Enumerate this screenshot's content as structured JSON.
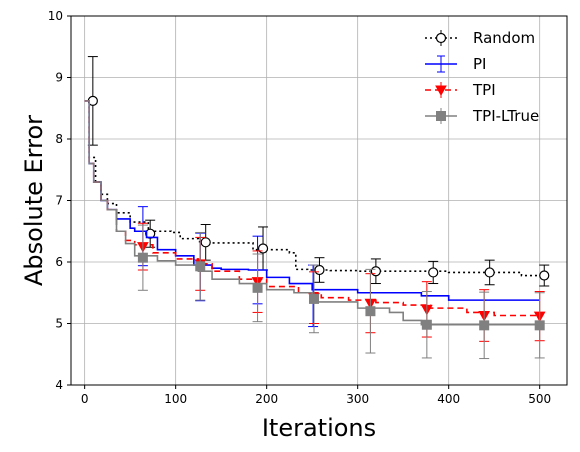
{
  "chart_data": {
    "type": "line",
    "title": "",
    "xlabel": "Iterations",
    "ylabel": "Absolute Error",
    "xlim": [
      -15,
      530
    ],
    "ylim": [
      4,
      10
    ],
    "xticks": [
      0,
      100,
      200,
      300,
      400,
      500
    ],
    "yticks": [
      4,
      5,
      6,
      7,
      8,
      9,
      10
    ],
    "grid": true,
    "legend_position": "top-right",
    "series": [
      {
        "name": "Random",
        "color": "#000000",
        "dash": "2,3",
        "marker": "circle-open",
        "step": [
          [
            0,
            8.62
          ],
          [
            5,
            7.7
          ],
          [
            12,
            7.3
          ],
          [
            18,
            7.1
          ],
          [
            25,
            6.95
          ],
          [
            35,
            6.8
          ],
          [
            50,
            6.65
          ],
          [
            70,
            6.5
          ],
          [
            95,
            6.48
          ],
          [
            105,
            6.38
          ],
          [
            125,
            6.33
          ],
          [
            135,
            6.31
          ],
          [
            185,
            6.2
          ],
          [
            225,
            6.15
          ],
          [
            232,
            5.88
          ],
          [
            245,
            5.87
          ],
          [
            270,
            5.86
          ],
          [
            300,
            5.85
          ],
          [
            400,
            5.83
          ],
          [
            470,
            5.83
          ],
          [
            480,
            5.78
          ],
          [
            500,
            5.78
          ]
        ],
        "markers": [
          {
            "x": 9,
            "y": 8.62,
            "err": 0.72
          },
          {
            "x": 72,
            "y": 6.46,
            "err": 0.22
          },
          {
            "x": 133,
            "y": 6.32,
            "err": 0.29
          },
          {
            "x": 196,
            "y": 6.22,
            "err": 0.35
          },
          {
            "x": 258,
            "y": 5.87,
            "err": 0.2
          },
          {
            "x": 320,
            "y": 5.85,
            "err": 0.2
          },
          {
            "x": 383,
            "y": 5.83,
            "err": 0.18
          },
          {
            "x": 445,
            "y": 5.83,
            "err": 0.2
          },
          {
            "x": 505,
            "y": 5.78,
            "err": 0.17
          }
        ]
      },
      {
        "name": "PI",
        "color": "#0000ff",
        "dash": "",
        "marker": "none",
        "step": [
          [
            0,
            8.62
          ],
          [
            5,
            7.6
          ],
          [
            10,
            7.3
          ],
          [
            18,
            7.0
          ],
          [
            25,
            6.85
          ],
          [
            35,
            6.7
          ],
          [
            50,
            6.55
          ],
          [
            55,
            6.5
          ],
          [
            68,
            6.4
          ],
          [
            80,
            6.2
          ],
          [
            100,
            6.1
          ],
          [
            120,
            5.95
          ],
          [
            140,
            5.9
          ],
          [
            150,
            5.88
          ],
          [
            180,
            5.87
          ],
          [
            200,
            5.75
          ],
          [
            225,
            5.65
          ],
          [
            250,
            5.55
          ],
          [
            300,
            5.5
          ],
          [
            370,
            5.45
          ],
          [
            400,
            5.38
          ],
          [
            500,
            5.38
          ]
        ],
        "markers": [
          {
            "x": 64,
            "y": 6.42,
            "err": 0.48
          },
          {
            "x": 127,
            "y": 5.92,
            "err": 0.55
          },
          {
            "x": 190,
            "y": 5.87,
            "err": 0.55
          },
          {
            "x": 251,
            "y": 5.45,
            "err": 0.5
          }
        ]
      },
      {
        "name": "TPI",
        "color": "#ff0000",
        "dash": "6,4",
        "marker": "triangle-down",
        "step": [
          [
            0,
            8.62
          ],
          [
            5,
            7.6
          ],
          [
            10,
            7.3
          ],
          [
            18,
            7.0
          ],
          [
            25,
            6.85
          ],
          [
            35,
            6.5
          ],
          [
            45,
            6.35
          ],
          [
            55,
            6.28
          ],
          [
            75,
            6.15
          ],
          [
            100,
            6.05
          ],
          [
            125,
            5.97
          ],
          [
            140,
            5.85
          ],
          [
            170,
            5.72
          ],
          [
            200,
            5.6
          ],
          [
            235,
            5.5
          ],
          [
            260,
            5.42
          ],
          [
            290,
            5.38
          ],
          [
            320,
            5.34
          ],
          [
            350,
            5.3
          ],
          [
            380,
            5.25
          ],
          [
            420,
            5.18
          ],
          [
            450,
            5.13
          ],
          [
            500,
            5.12
          ]
        ],
        "markers": [
          {
            "x": 64,
            "y": 6.25,
            "err": 0.38
          },
          {
            "x": 127,
            "y": 5.97,
            "err": 0.43
          },
          {
            "x": 190,
            "y": 5.68,
            "err": 0.5
          },
          {
            "x": 252,
            "y": 5.42,
            "err": 0.42
          },
          {
            "x": 314,
            "y": 5.33,
            "err": 0.48
          },
          {
            "x": 376,
            "y": 5.23,
            "err": 0.45
          },
          {
            "x": 439,
            "y": 5.13,
            "err": 0.42
          },
          {
            "x": 500,
            "y": 5.12,
            "err": 0.4
          }
        ]
      },
      {
        "name": "TPI-LTrue",
        "color": "#808080",
        "dash": "",
        "marker": "square",
        "step": [
          [
            0,
            8.62
          ],
          [
            5,
            7.6
          ],
          [
            10,
            7.3
          ],
          [
            18,
            7.0
          ],
          [
            25,
            6.85
          ],
          [
            35,
            6.5
          ],
          [
            45,
            6.3
          ],
          [
            55,
            6.1
          ],
          [
            80,
            6.02
          ],
          [
            100,
            5.95
          ],
          [
            125,
            5.85
          ],
          [
            140,
            5.72
          ],
          [
            170,
            5.65
          ],
          [
            200,
            5.55
          ],
          [
            230,
            5.5
          ],
          [
            250,
            5.35
          ],
          [
            300,
            5.25
          ],
          [
            335,
            5.18
          ],
          [
            350,
            5.05
          ],
          [
            370,
            4.98
          ],
          [
            500,
            4.98
          ]
        ],
        "markers": [
          {
            "x": 64,
            "y": 6.07,
            "err": 0.53
          },
          {
            "x": 127,
            "y": 5.93,
            "err": 0.55
          },
          {
            "x": 190,
            "y": 5.58,
            "err": 0.55
          },
          {
            "x": 252,
            "y": 5.4,
            "err": 0.55
          },
          {
            "x": 314,
            "y": 5.2,
            "err": 0.68
          },
          {
            "x": 376,
            "y": 4.98,
            "err": 0.54
          },
          {
            "x": 439,
            "y": 4.97,
            "err": 0.54
          },
          {
            "x": 500,
            "y": 4.97,
            "err": 0.53
          }
        ]
      }
    ]
  }
}
